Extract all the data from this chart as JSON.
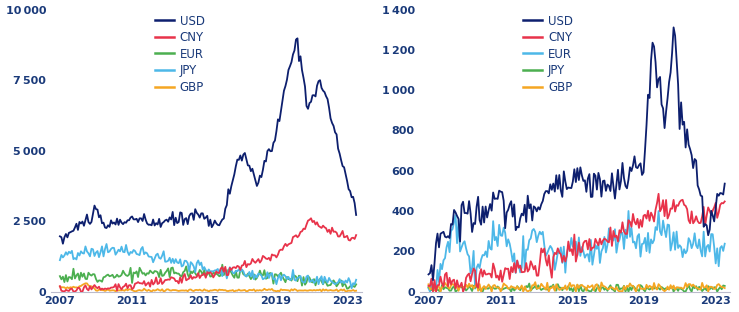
{
  "colors": {
    "USD": "#0d1f6e",
    "CNY": "#e8334a",
    "EUR_left": "#4caf50",
    "JPY_left": "#4db8e8",
    "GBP": "#f5a623",
    "EUR_right": "#4db8e8",
    "JPY_right": "#4caf50"
  },
  "left_ylim": [
    0,
    10000
  ],
  "left_yticks": [
    0,
    2500,
    5000,
    7500,
    10000
  ],
  "right_ylim": [
    0,
    1400
  ],
  "right_yticks": [
    0,
    200,
    400,
    600,
    800,
    1000,
    1200,
    1400
  ],
  "xlim_left": [
    2006.5,
    2023.8
  ],
  "xlim_right": [
    2006.5,
    2023.8
  ],
  "xticks": [
    2007,
    2011,
    2015,
    2019,
    2023
  ],
  "legend_labels_left": [
    "USD",
    "CNY",
    "EUR",
    "JPY",
    "GBP"
  ],
  "legend_labels_right": [
    "USD",
    "CNY",
    "EUR",
    "JPY",
    "GBP"
  ],
  "background_color": "#ffffff",
  "text_color": "#1a3a7a",
  "line_width": 1.3
}
